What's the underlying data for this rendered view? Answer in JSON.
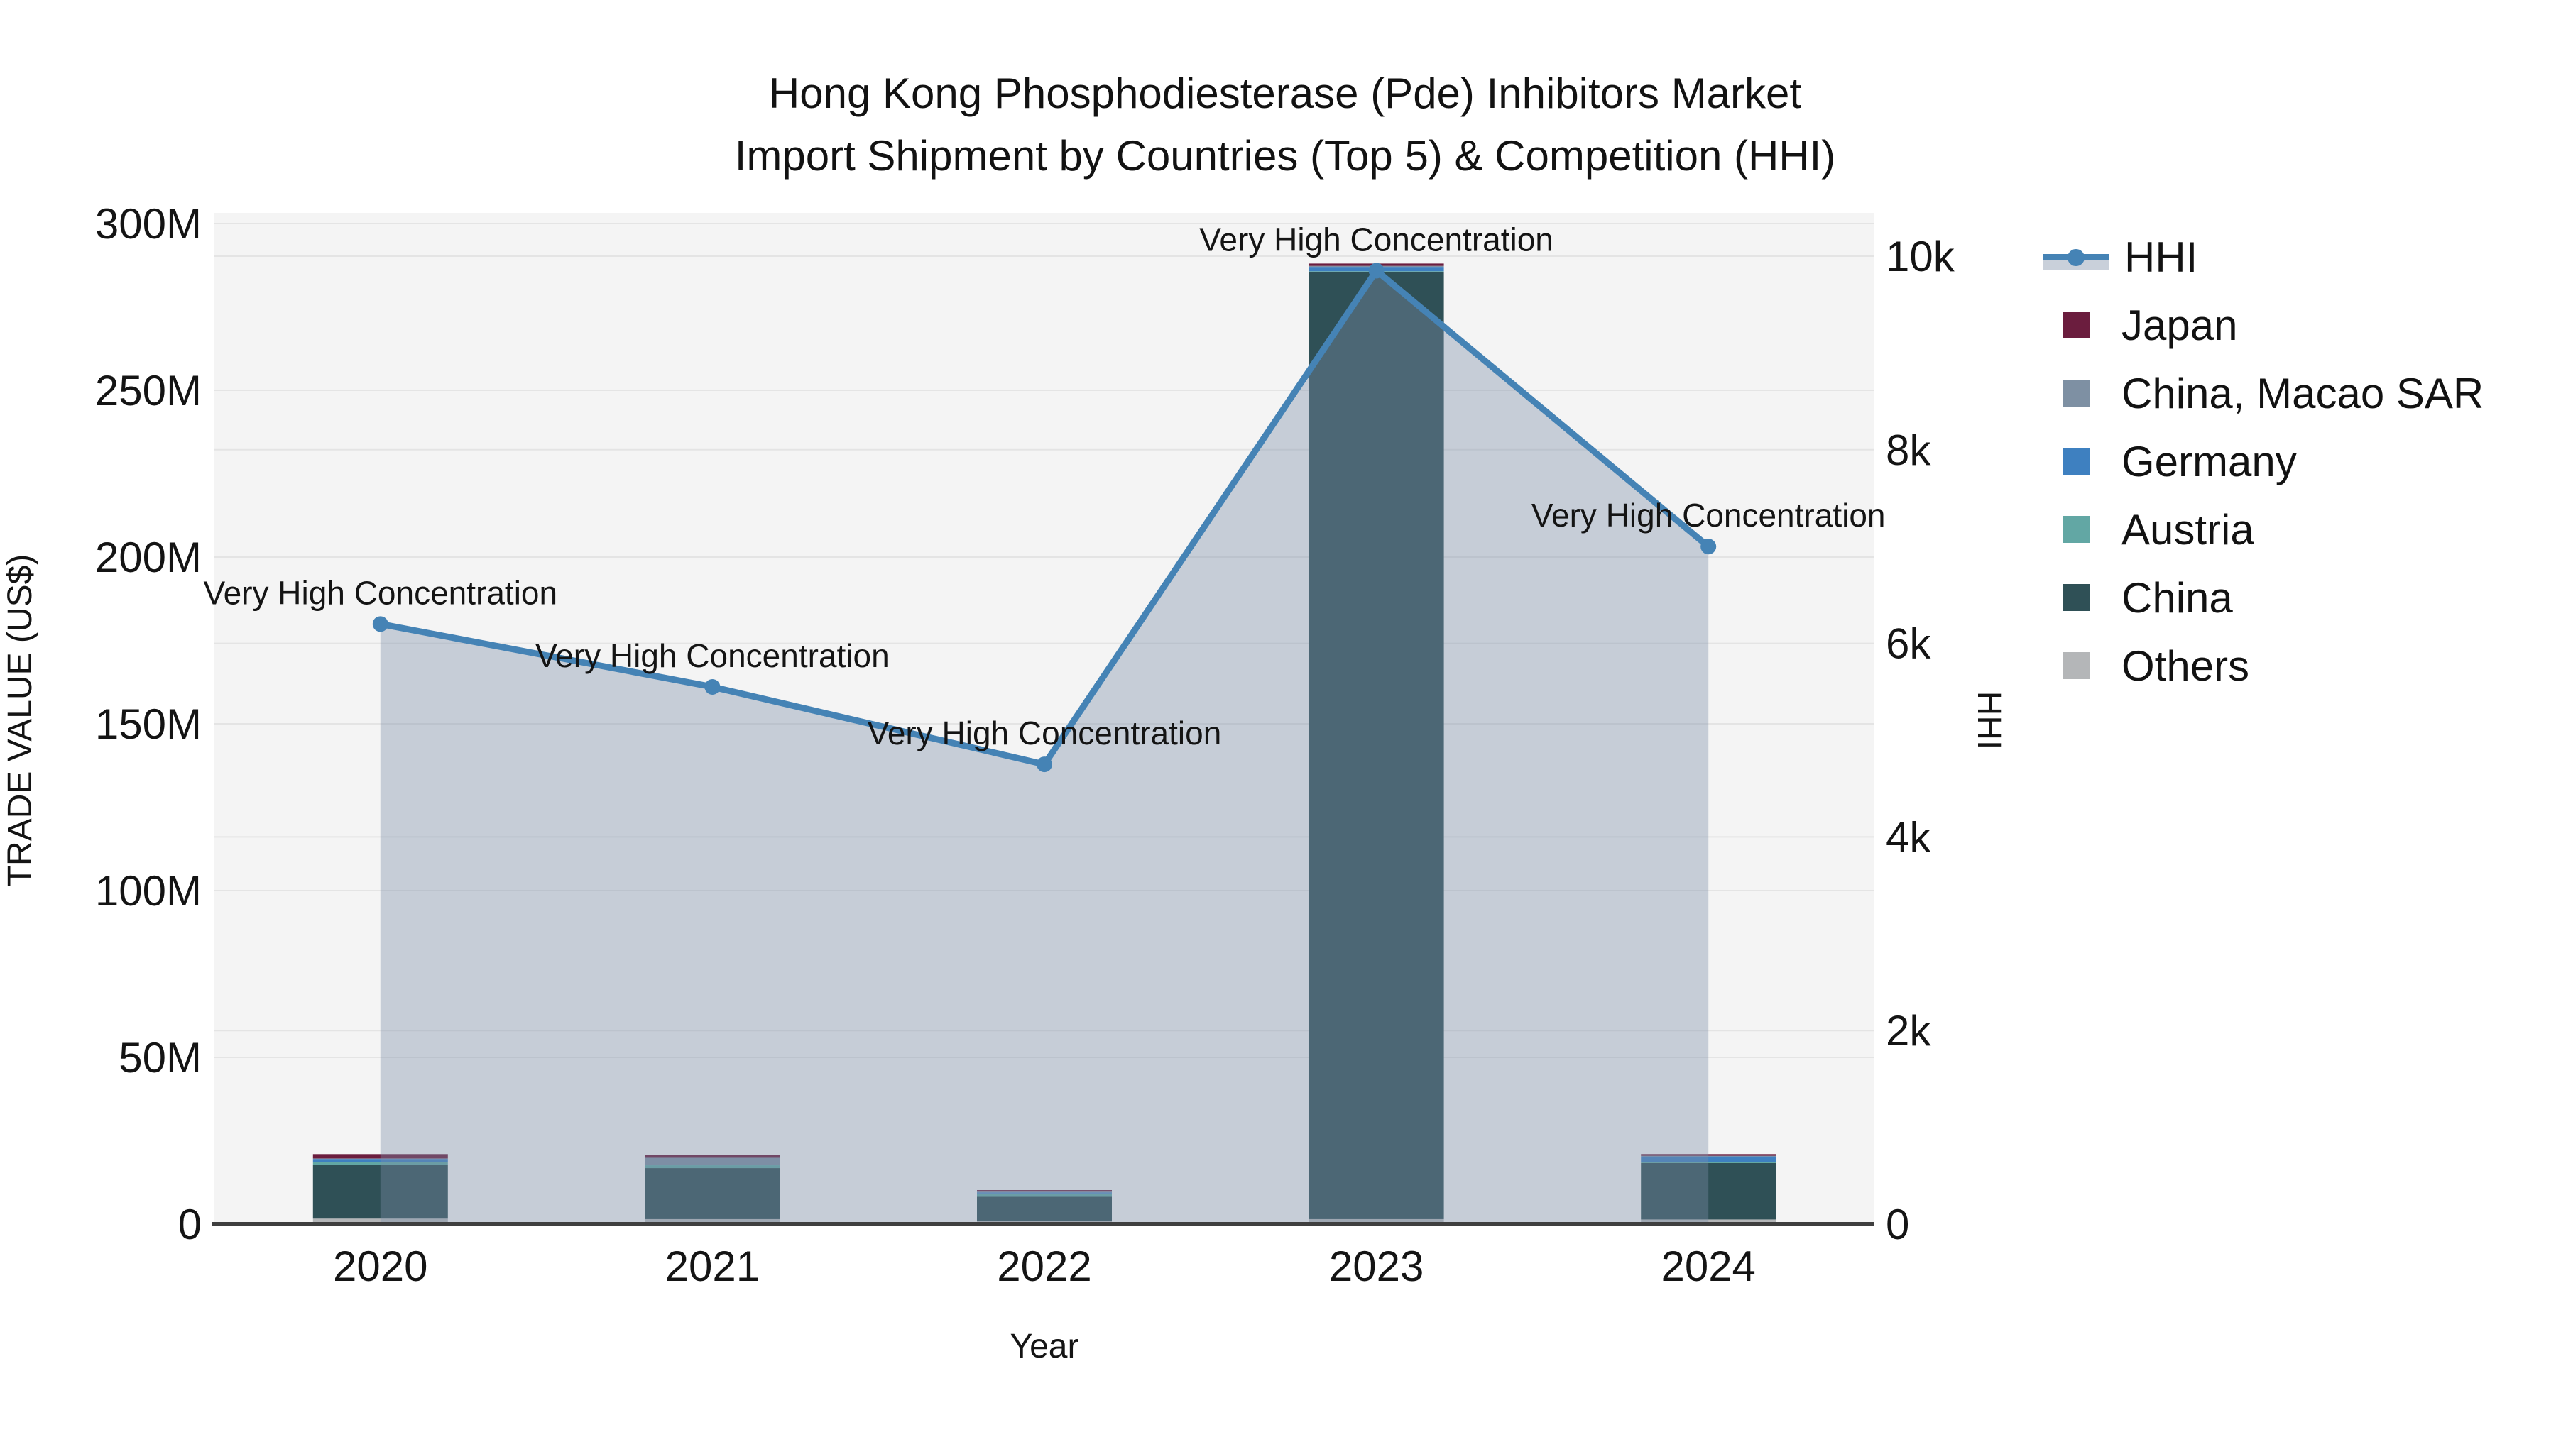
{
  "title": {
    "line1": "Hong Kong Phosphodiesterase (Pde) Inhibitors Market",
    "line2": "Import Shipment by Countries (Top 5) & Competition (HHI)"
  },
  "chart_data": {
    "type": "bar+line",
    "x": [
      "2020",
      "2021",
      "2022",
      "2023",
      "2024"
    ],
    "xlabel": "Year",
    "y_left": {
      "label": "TRADE VALUE (US$)",
      "unit": "M US$",
      "max": 300,
      "ticks": [
        "0",
        "50M",
        "100M",
        "150M",
        "200M",
        "250M",
        "300M"
      ],
      "grid": true
    },
    "y_right": {
      "label": "HHI",
      "max": 10000,
      "ticks": [
        "0",
        "2k",
        "4k",
        "6k",
        "8k",
        "10k"
      ],
      "grid": true
    },
    "bar_series_stack_bottom_to_top": [
      {
        "name": "Others",
        "color": "#b4b6b8",
        "values_musd": [
          1.65,
          1.5,
          0.9,
          1.5,
          1.4
        ]
      },
      {
        "name": "China",
        "color": "#2f5056",
        "values_musd": [
          16.2,
          15.3,
          7.3,
          284.0,
          16.9
        ]
      },
      {
        "name": "Austria",
        "color": "#62a7a4",
        "values_musd": [
          0.7,
          0.85,
          1.0,
          0.2,
          0.4
        ]
      },
      {
        "name": "Germany",
        "color": "#3e80c0",
        "values_musd": [
          1.0,
          0.15,
          0.3,
          1.3,
          1.6
        ]
      },
      {
        "name": "China, Macao SAR",
        "color": "#7e90a3",
        "values_musd": [
          0.15,
          2.1,
          0.25,
          0.3,
          0.2
        ]
      },
      {
        "name": "Japan",
        "color": "#6b1d3e",
        "values_musd": [
          1.3,
          0.9,
          0.45,
          0.7,
          0.5
        ]
      }
    ],
    "line_series": {
      "name": "HHI",
      "values": [
        6200,
        5550,
        4750,
        9850,
        7000
      ],
      "color": "#4583b5",
      "area_color": "rgba(124,143,169,0.38)",
      "marker": "circle"
    },
    "annotations": [
      {
        "x": "2020",
        "text": "Very High Concentration"
      },
      {
        "x": "2021",
        "text": "Very High Concentration"
      },
      {
        "x": "2022",
        "text": "Very High Concentration"
      },
      {
        "x": "2023",
        "text": "Very High Concentration"
      },
      {
        "x": "2024",
        "text": "Very High Concentration"
      }
    ],
    "legend_position": "right",
    "plot_bg_color": "#f4f4f4",
    "grid_color": "#e4e4e4",
    "axis_line_color": "#3f3f3f"
  },
  "legend": {
    "items": [
      {
        "label": "HHI",
        "type": "line",
        "color": "#4583b5",
        "band_color": "#c9d0da"
      },
      {
        "label": "Japan",
        "type": "swatch",
        "color": "#6b1d3e"
      },
      {
        "label": "China, Macao SAR",
        "type": "swatch",
        "color": "#7e90a3"
      },
      {
        "label": "Germany",
        "type": "swatch",
        "color": "#3e80c0"
      },
      {
        "label": "Austria",
        "type": "swatch",
        "color": "#62a7a4"
      },
      {
        "label": "China",
        "type": "swatch",
        "color": "#2f5056"
      },
      {
        "label": "Others",
        "type": "swatch",
        "color": "#b4b6b8"
      }
    ]
  }
}
